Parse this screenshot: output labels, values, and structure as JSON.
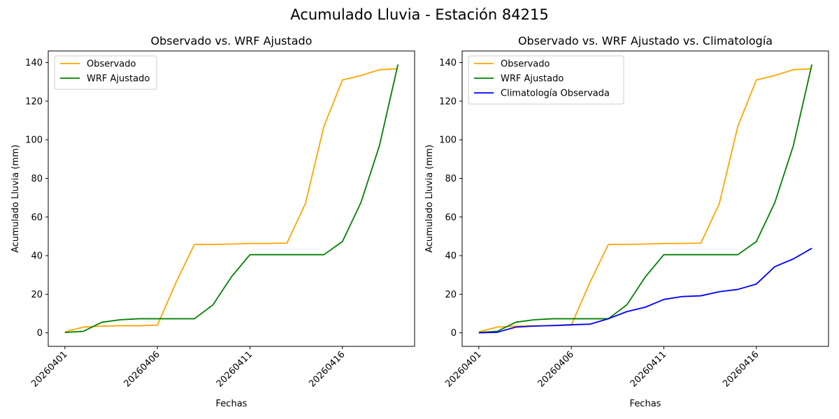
{
  "figure": {
    "suptitle": "Acumulado Lluvia - Estación 84215"
  },
  "chart_data": [
    {
      "type": "line",
      "title": "Observado vs. WRF Ajustado",
      "xlabel": "Fechas",
      "ylabel": "Acumulado Lluvia (mm)",
      "x": [
        "20260401",
        "20260402",
        "20260403",
        "20260404",
        "20260405",
        "20260406",
        "20260407",
        "20260408",
        "20260409",
        "20260410",
        "20260411",
        "20260412",
        "20260413",
        "20260414",
        "20260415",
        "20260416",
        "20260417",
        "20260418",
        "20260419"
      ],
      "xticks": [
        "20260401",
        "20260406",
        "20260411",
        "20260416"
      ],
      "yticks": [
        0,
        20,
        40,
        60,
        80,
        100,
        120,
        140
      ],
      "ylim": [
        -7,
        146
      ],
      "grid": false,
      "legend": "upper left",
      "series": [
        {
          "name": "Observado",
          "color": "#ffa500",
          "values": [
            0.5,
            3.0,
            3.5,
            3.7,
            3.7,
            4.0,
            26.0,
            45.8,
            45.8,
            46.0,
            46.3,
            46.3,
            46.5,
            67.0,
            107.0,
            131.0,
            133.3,
            136.3,
            136.8
          ]
        },
        {
          "name": "WRF Ajustado",
          "color": "#008000",
          "values": [
            0.2,
            0.8,
            5.5,
            6.8,
            7.3,
            7.3,
            7.3,
            7.3,
            14.5,
            29.0,
            40.5,
            40.5,
            40.5,
            40.5,
            40.5,
            47.3,
            67.5,
            97.0,
            139.0
          ]
        }
      ]
    },
    {
      "type": "line",
      "title": "Observado vs. WRF Ajustado vs. Climatología",
      "xlabel": "Fechas",
      "ylabel": "Acumulado Lluvia (mm)",
      "x": [
        "20260401",
        "20260402",
        "20260403",
        "20260404",
        "20260405",
        "20260406",
        "20260407",
        "20260408",
        "20260409",
        "20260410",
        "20260411",
        "20260412",
        "20260413",
        "20260414",
        "20260415",
        "20260416",
        "20260417",
        "20260418",
        "20260419"
      ],
      "xticks": [
        "20260401",
        "20260406",
        "20260411",
        "20260416"
      ],
      "yticks": [
        0,
        20,
        40,
        60,
        80,
        100,
        120,
        140
      ],
      "ylim": [
        -7,
        146
      ],
      "grid": false,
      "legend": "upper left",
      "series": [
        {
          "name": "Observado",
          "color": "#ffa500",
          "values": [
            0.5,
            3.0,
            3.5,
            3.7,
            3.7,
            4.0,
            26.0,
            45.8,
            45.8,
            46.0,
            46.3,
            46.3,
            46.5,
            67.0,
            107.0,
            131.0,
            133.3,
            136.3,
            136.8
          ]
        },
        {
          "name": "WRF Ajustado",
          "color": "#008000",
          "values": [
            0.2,
            0.8,
            5.5,
            6.8,
            7.3,
            7.3,
            7.3,
            7.3,
            14.5,
            29.0,
            40.5,
            40.5,
            40.5,
            40.5,
            40.5,
            47.3,
            67.5,
            97.0,
            139.0
          ]
        },
        {
          "name": "Climatología Observada",
          "color": "#0000ff",
          "values": [
            0.0,
            0.3,
            3.0,
            3.5,
            3.8,
            4.2,
            4.5,
            7.3,
            11.0,
            13.3,
            17.3,
            18.8,
            19.2,
            21.3,
            22.5,
            25.3,
            34.3,
            38.3,
            43.8
          ]
        }
      ]
    }
  ]
}
